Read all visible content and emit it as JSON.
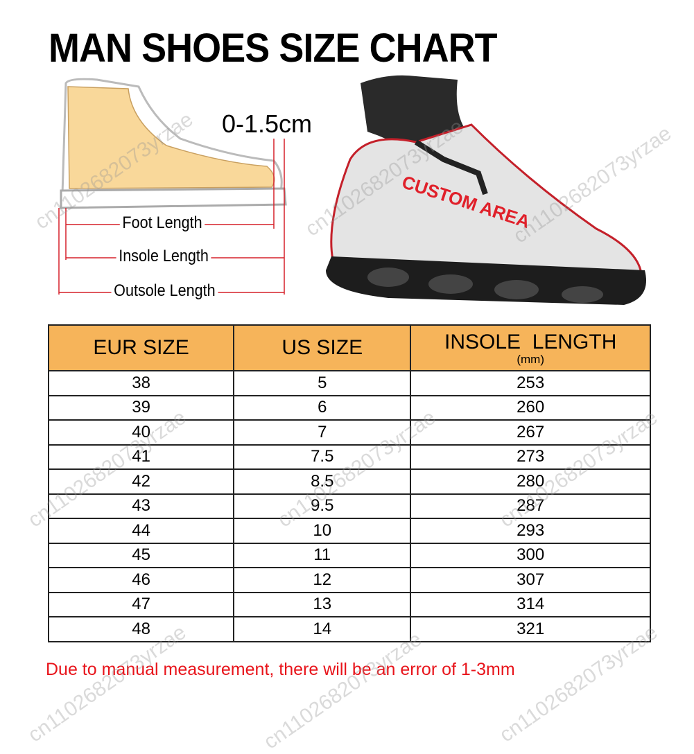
{
  "title": "MAN SHOES SIZE CHART",
  "tolerance": "0-1.5cm",
  "measurements": {
    "foot_length": "Foot Length",
    "insole_length": "Insole Length",
    "outsole_length": "Outsole Length"
  },
  "shoe_print": "CUSTOM AREA",
  "watermark": "cn1102682073yrzae",
  "colors": {
    "header": "#f6b45a",
    "note": "#e8141b",
    "accent_line": "#d6202a"
  },
  "table": {
    "headers": [
      "EUR SIZE",
      "US SIZE",
      "INSOLE  LENGTH"
    ],
    "header_sub": "(mm)",
    "rows": [
      [
        "38",
        "5",
        "253"
      ],
      [
        "39",
        "6",
        "260"
      ],
      [
        "40",
        "7",
        "267"
      ],
      [
        "41",
        "7.5",
        "273"
      ],
      [
        "42",
        "8.5",
        "280"
      ],
      [
        "43",
        "9.5",
        "287"
      ],
      [
        "44",
        "10",
        "293"
      ],
      [
        "45",
        "11",
        "300"
      ],
      [
        "46",
        "12",
        "307"
      ],
      [
        "47",
        "13",
        "314"
      ],
      [
        "48",
        "14",
        "321"
      ]
    ]
  },
  "note": "Due to manual measurement, there will be an error of 1-3mm"
}
